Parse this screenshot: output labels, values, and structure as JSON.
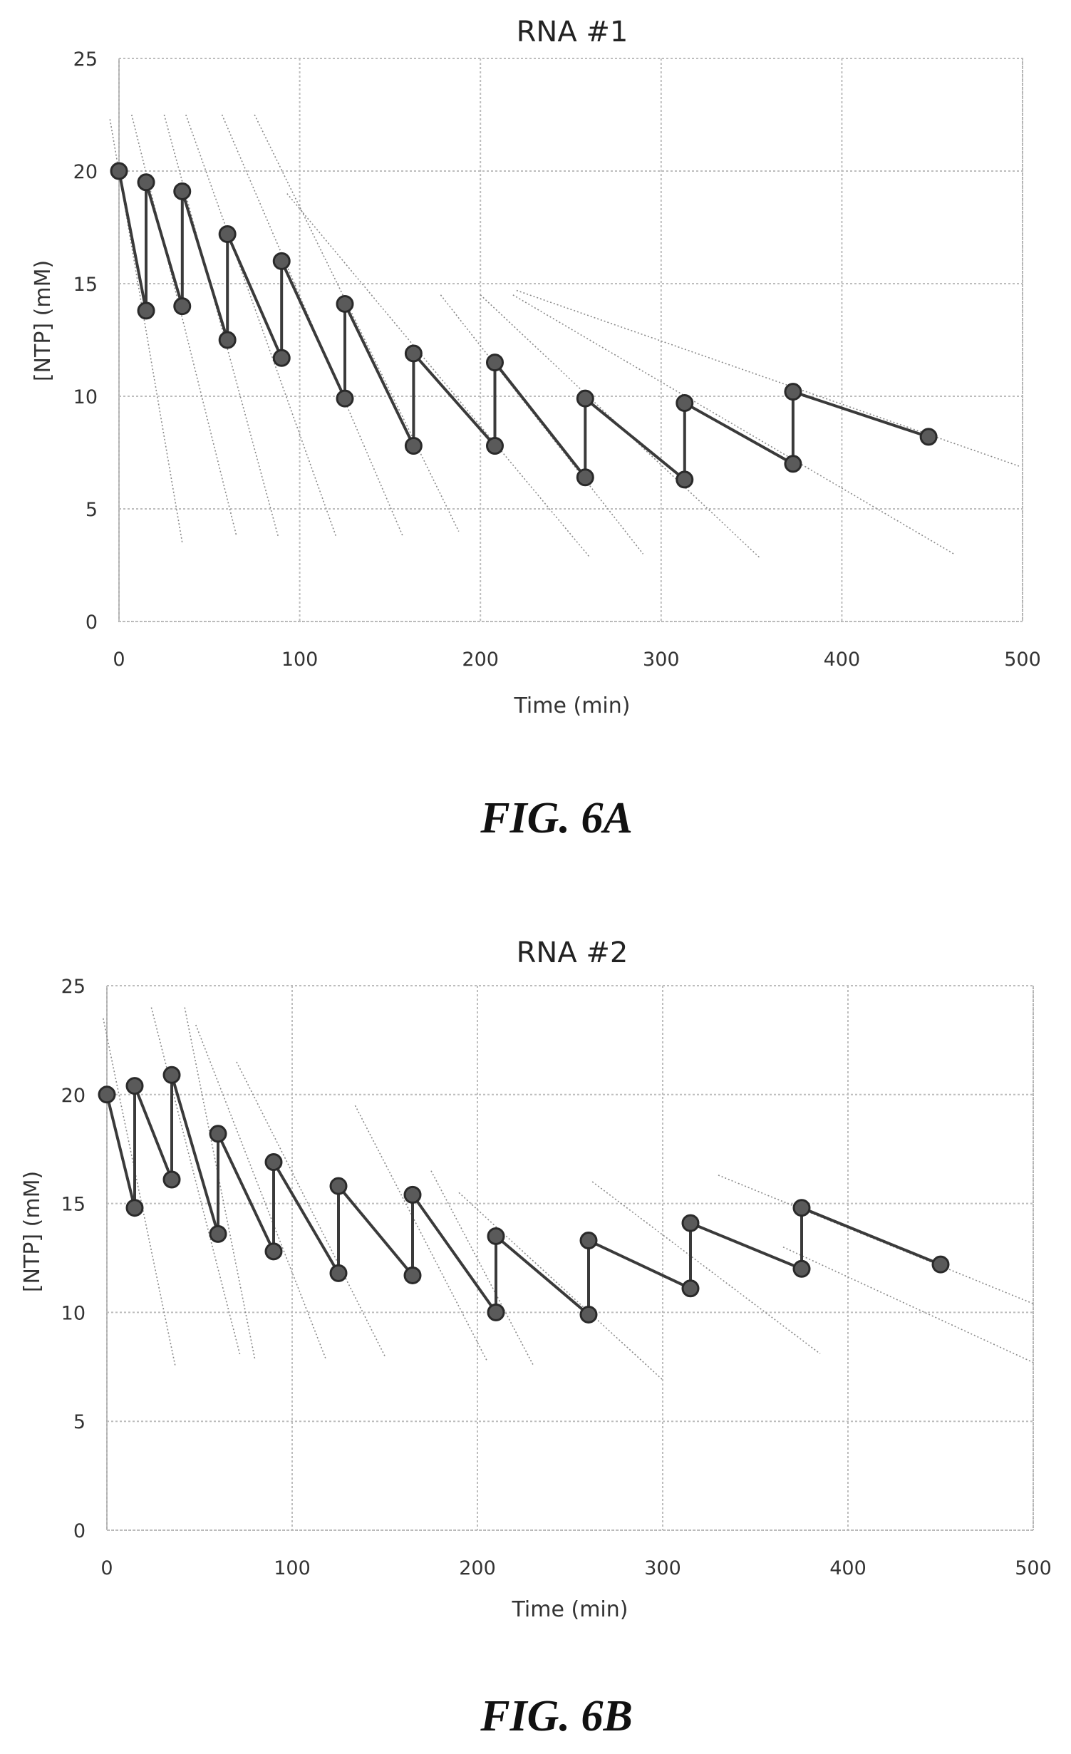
{
  "chart_data": [
    {
      "type": "line",
      "title": "RNA #1",
      "xlabel": "Time (min)",
      "ylabel": "[NTP] (mM)",
      "figure_label": "FIG. 6A",
      "xlim": [
        0,
        500
      ],
      "ylim": [
        0,
        25
      ],
      "xticks": [
        0,
        100,
        200,
        300,
        400,
        500
      ],
      "yticks": [
        0,
        5,
        10,
        15,
        20,
        25
      ],
      "grid": true,
      "series": [
        {
          "points": [
            [
              0,
              20.0
            ],
            [
              15,
              13.8
            ],
            [
              15,
              19.5
            ],
            [
              35,
              14.0
            ],
            [
              35,
              19.1
            ],
            [
              60,
              12.5
            ],
            [
              60,
              17.2
            ],
            [
              90,
              11.7
            ],
            [
              90,
              16.0
            ],
            [
              125,
              9.9
            ],
            [
              125,
              14.1
            ],
            [
              163,
              7.8
            ],
            [
              163,
              11.9
            ],
            [
              208,
              7.8
            ],
            [
              208,
              11.5
            ],
            [
              258,
              6.4
            ],
            [
              258,
              9.9
            ],
            [
              313,
              6.3
            ],
            [
              313,
              9.7
            ],
            [
              373,
              7.0
            ],
            [
              373,
              10.2
            ],
            [
              448,
              8.2
            ]
          ]
        }
      ],
      "trendlines": [
        [
          [
            -5,
            22.3
          ],
          [
            35,
            3.5
          ]
        ],
        [
          [
            7,
            22.5
          ],
          [
            65,
            3.8
          ]
        ],
        [
          [
            25,
            22.5
          ],
          [
            88,
            3.8
          ]
        ],
        [
          [
            37,
            22.5
          ],
          [
            120,
            3.8
          ]
        ],
        [
          [
            57,
            22.5
          ],
          [
            157,
            3.8
          ]
        ],
        [
          [
            75,
            22.5
          ],
          [
            188,
            4.0
          ]
        ],
        [
          [
            93,
            19.0
          ],
          [
            260,
            2.9
          ]
        ],
        [
          [
            178,
            14.5
          ],
          [
            290,
            3.0
          ]
        ],
        [
          [
            200,
            14.5
          ],
          [
            355,
            2.8
          ]
        ],
        [
          [
            218,
            14.5
          ],
          [
            462,
            3.0
          ]
        ],
        [
          [
            220,
            14.7
          ],
          [
            498,
            6.9
          ]
        ]
      ]
    },
    {
      "type": "line",
      "title": "RNA #2",
      "xlabel": "Time (min)",
      "ylabel": "[NTP] (mM)",
      "figure_label": "FIG. 6B",
      "xlim": [
        0,
        500
      ],
      "ylim": [
        0,
        25
      ],
      "xticks": [
        0,
        100,
        200,
        300,
        400,
        500
      ],
      "yticks": [
        0,
        5,
        10,
        15,
        20,
        25
      ],
      "grid": true,
      "series": [
        {
          "points": [
            [
              0,
              20.0
            ],
            [
              15,
              14.8
            ],
            [
              15,
              20.4
            ],
            [
              35,
              16.1
            ],
            [
              35,
              20.9
            ],
            [
              60,
              13.6
            ],
            [
              60,
              18.2
            ],
            [
              90,
              12.8
            ],
            [
              90,
              16.9
            ],
            [
              125,
              11.8
            ],
            [
              125,
              15.8
            ],
            [
              165,
              11.7
            ],
            [
              165,
              15.4
            ],
            [
              210,
              10.0
            ],
            [
              210,
              13.5
            ],
            [
              260,
              9.9
            ],
            [
              260,
              13.3
            ],
            [
              315,
              11.1
            ],
            [
              315,
              14.1
            ],
            [
              375,
              12.0
            ],
            [
              375,
              14.8
            ],
            [
              450,
              12.2
            ]
          ]
        }
      ],
      "trendlines": [
        [
          [
            -2,
            23.5
          ],
          [
            37,
            7.5
          ]
        ],
        [
          [
            24,
            24.0
          ],
          [
            72,
            8.0
          ]
        ],
        [
          [
            42,
            24.0
          ],
          [
            80,
            7.8
          ]
        ],
        [
          [
            48,
            23.2
          ],
          [
            118,
            7.9
          ]
        ],
        [
          [
            70,
            21.5
          ],
          [
            150,
            8.0
          ]
        ],
        [
          [
            134,
            19.5
          ],
          [
            205,
            7.8
          ]
        ],
        [
          [
            175,
            16.5
          ],
          [
            230,
            7.6
          ]
        ],
        [
          [
            190,
            15.5
          ],
          [
            300,
            6.9
          ]
        ],
        [
          [
            262,
            16.0
          ],
          [
            385,
            8.1
          ]
        ],
        [
          [
            330,
            16.3
          ],
          [
            500,
            10.4
          ]
        ],
        [
          [
            365,
            13.0
          ],
          [
            500,
            7.7
          ]
        ]
      ]
    }
  ]
}
